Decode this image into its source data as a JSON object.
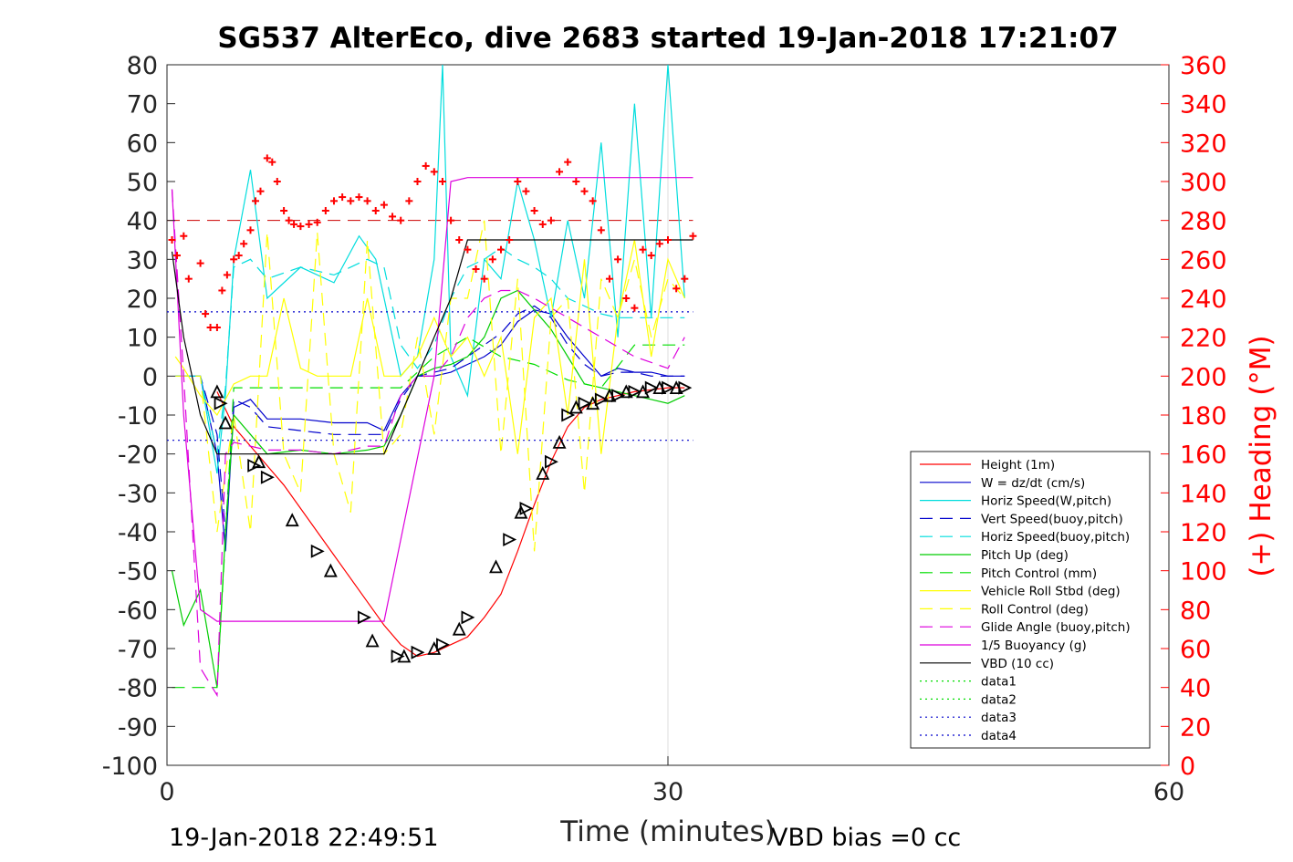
{
  "chart_data": {
    "type": "line",
    "title": "SG537 AlterEco, dive 2683 started 19-Jan-2018 17:21:07",
    "xlabel": "Time (minutes)",
    "ylabel": "",
    "y2label": "(+) Heading (°M)",
    "xlim": [
      0,
      60
    ],
    "ylim": [
      -100,
      80
    ],
    "y2lim": [
      0,
      360
    ],
    "xticks": [
      "0",
      "30",
      "60"
    ],
    "yticks": [
      "80",
      "70",
      "60",
      "50",
      "40",
      "30",
      "20",
      "10",
      "0",
      "-10",
      "-20",
      "-30",
      "-40",
      "-50",
      "-60",
      "-70",
      "-80",
      "-90",
      "-100"
    ],
    "y2ticks": [
      "360",
      "340",
      "320",
      "300",
      "280",
      "260",
      "240",
      "220",
      "200",
      "180",
      "160",
      "140",
      "120",
      "100",
      "80",
      "60",
      "40",
      "20",
      "0"
    ],
    "grid": "x-only",
    "legend_position": "bottom-right",
    "footer_left": "19-Jan-2018 22:49:51",
    "footer_right": "VBD bias =0 cc",
    "series": [
      {
        "name": "Height (1m)",
        "color": "#ff0000",
        "style": "solid",
        "x": [
          3.0,
          4.0,
          5.0,
          6.0,
          7.0,
          8.0,
          9.0,
          10.0,
          11.0,
          12.0,
          13.0,
          14.0,
          15.0,
          16.0,
          17.0,
          18.0,
          19.0,
          20.0,
          21.0,
          22.0,
          23.0,
          24.0,
          25.0,
          26.0,
          27.0,
          28.0,
          29.0,
          30.0,
          31.0
        ],
        "y": [
          -4,
          -13,
          -18,
          -23,
          -28,
          -34,
          -40,
          -46,
          -52,
          -58,
          -64,
          -69,
          -72,
          -71,
          -69,
          -67,
          -62,
          -56,
          -45,
          -33,
          -22,
          -13,
          -8,
          -6,
          -5,
          -4,
          -3.5,
          -3,
          -3
        ]
      },
      {
        "name": "W = dz/dt (cm/s)",
        "color": "#0000cc",
        "style": "solid",
        "x": [
          0.5,
          2.0,
          3.0,
          3.5,
          4.0,
          5.0,
          6.0,
          8.0,
          10.0,
          12.0,
          13.0,
          14.0,
          15.0,
          16.0,
          17.0,
          18.0,
          19.0,
          20.0,
          21.0,
          22.0,
          23.0,
          24.0,
          25.0,
          26.0,
          27.0,
          28.0,
          29.0,
          30.0,
          31.0
        ],
        "y": [
          0,
          0,
          -20,
          -45,
          -8,
          -6,
          -11,
          -11,
          -12,
          -12,
          -14,
          -5,
          0,
          0,
          1,
          3,
          5,
          8,
          14,
          17,
          16,
          10,
          5,
          0,
          2,
          1,
          1,
          0,
          0
        ]
      },
      {
        "name": "Horiz Speed(W,pitch)",
        "color": "#00dddd",
        "style": "solid",
        "x": [
          0.5,
          2.0,
          3.0,
          3.5,
          4.0,
          5.0,
          6.0,
          8.0,
          10.0,
          11.5,
          12.5,
          13.5,
          14.0,
          15.0,
          16.0,
          16.5,
          17.0,
          18.0,
          19.0,
          20.0,
          21.0,
          22.0,
          23.0,
          24.0,
          25.0,
          26.0,
          27.0,
          28.0,
          29.0,
          30.0,
          31.0
        ],
        "y": [
          0,
          0,
          -25,
          -5,
          30,
          53,
          20,
          28,
          24,
          36,
          30,
          10,
          0,
          5,
          30,
          80,
          5,
          -5,
          30,
          25,
          50,
          35,
          15,
          40,
          20,
          60,
          10,
          70,
          15,
          80,
          20
        ]
      },
      {
        "name": "Vert Speed(buoy,pitch)",
        "color": "#0000cc",
        "style": "dashed",
        "x": [
          0.5,
          2.0,
          3.0,
          3.5,
          4.0,
          5.0,
          6.0,
          8.0,
          10.0,
          12.0,
          13.0,
          14.0,
          15.0,
          16.0,
          17.0,
          18.0,
          19.0,
          20.0,
          21.0,
          22.0,
          23.0,
          24.0,
          25.0,
          26.0,
          27.0,
          28.0,
          29.0,
          30.0,
          31.0
        ],
        "y": [
          0,
          0,
          -15,
          -40,
          -6,
          -8,
          -13,
          -14,
          -15,
          -15,
          -15,
          -6,
          0,
          1,
          2,
          5,
          8,
          11,
          16,
          18,
          15,
          8,
          3,
          0,
          1,
          1,
          0,
          0,
          0
        ]
      },
      {
        "name": "Horiz Speed(buoy,pitch)",
        "color": "#00dddd",
        "style": "dashed",
        "x": [
          0.5,
          2.0,
          3.0,
          3.5,
          4.0,
          5.0,
          6.0,
          8.0,
          10.0,
          12.0,
          13.0,
          14.0,
          15.0,
          16.0,
          17.0,
          18.0,
          19.0,
          20.0,
          21.0,
          22.0,
          23.0,
          24.0,
          25.0,
          26.0,
          27.0,
          28.0,
          29.0,
          30.0,
          31.0
        ],
        "y": [
          0,
          0,
          -20,
          -3,
          28,
          30,
          25,
          28,
          26,
          30,
          28,
          8,
          2,
          8,
          20,
          28,
          30,
          33,
          30,
          28,
          25,
          20,
          18,
          16,
          15,
          15,
          15,
          15,
          15
        ]
      },
      {
        "name": "Pitch Up (deg)",
        "color": "#00cc00",
        "style": "solid",
        "x": [
          0.3,
          1.0,
          2.0,
          3.0,
          3.5,
          4.0,
          5.0,
          6.0,
          8.0,
          10.0,
          12.0,
          13.0,
          14.0,
          15.0,
          16.0,
          17.0,
          18.0,
          19.0,
          20.0,
          21.0,
          22.0,
          23.0,
          24.0,
          25.0,
          26.0,
          27.0,
          28.0,
          29.0,
          30.0,
          31.0
        ],
        "y": [
          -50,
          -64,
          -55,
          -80,
          -40,
          -10,
          -15,
          -20,
          -19,
          -20,
          -19,
          -18,
          -10,
          0,
          2,
          3,
          5,
          10,
          20,
          22,
          17,
          12,
          5,
          -2,
          -3,
          -4,
          -5,
          -6,
          -7,
          -5
        ]
      },
      {
        "name": "Pitch Control (mm)",
        "color": "#00dd00",
        "style": "dashed",
        "x": [
          0.3,
          2.0,
          3.0,
          4.0,
          6.0,
          8.0,
          10.0,
          12.0,
          14.0,
          16.0,
          18.0,
          20.0,
          22.0,
          24.0,
          26.0,
          28.0,
          30.0,
          31.0
        ],
        "y": [
          -80,
          -80,
          -80,
          -3,
          -3,
          -3,
          -3,
          -3,
          -3,
          5,
          10,
          5,
          3,
          -1,
          -3,
          8,
          8,
          8
        ]
      },
      {
        "name": "Vehicle Roll Stbd (deg)",
        "color": "#ffff00",
        "style": "solid",
        "x": [
          0.5,
          1.0,
          2.0,
          3.0,
          4.0,
          5.0,
          6.0,
          7.0,
          8.0,
          9.0,
          10.0,
          11.0,
          12.0,
          13.0,
          14.0,
          15.0,
          16.0,
          17.0,
          18.0,
          19.0,
          20.0,
          21.0,
          22.0,
          23.0,
          24.0,
          25.0,
          26.0,
          27.0,
          28.0,
          29.0,
          30.0,
          31.0
        ],
        "y": [
          5,
          2,
          -5,
          -10,
          -2,
          0,
          0,
          20,
          2,
          0,
          0,
          0,
          20,
          0,
          0,
          5,
          15,
          5,
          10,
          0,
          10,
          -20,
          15,
          20,
          -10,
          30,
          -20,
          15,
          35,
          5,
          30,
          20
        ]
      },
      {
        "name": "Roll Control (deg)",
        "color": "#ffff00",
        "style": "dashed",
        "x": [
          0.5,
          2.0,
          3.0,
          4.0,
          5.0,
          6.0,
          7.0,
          8.0,
          9.0,
          10.0,
          11.0,
          12.0,
          13.0,
          14.0,
          15.0,
          16.0,
          17.0,
          18.0,
          19.0,
          20.0,
          21.0,
          22.0,
          23.0,
          24.0,
          25.0,
          26.0,
          27.0,
          28.0,
          29.0,
          30.0,
          31.0
        ],
        "y": [
          0,
          0,
          -40,
          -10,
          -40,
          37,
          -20,
          -30,
          37,
          -20,
          -35,
          35,
          -20,
          -15,
          10,
          -15,
          20,
          20,
          40,
          -20,
          25,
          -45,
          15,
          20,
          -30,
          25,
          15,
          30,
          10,
          25,
          20
        ]
      },
      {
        "name": "Glide Angle (buoy,pitch)",
        "color": "#dd00dd",
        "style": "dashed",
        "x": [
          0.3,
          1.0,
          2.0,
          3.0,
          3.5,
          4.0,
          6.0,
          8.0,
          10.0,
          12.0,
          13.0,
          14.0,
          15.0,
          16.0,
          17.0,
          18.0,
          19.0,
          20.0,
          21.0,
          22.0,
          24.0,
          26.0,
          28.0,
          30.0,
          31.0
        ],
        "y": [
          48,
          0,
          -75,
          -82,
          -20,
          -17,
          -19,
          -19,
          -20,
          -18,
          -18,
          -5,
          0,
          0,
          5,
          15,
          20,
          22,
          22,
          20,
          15,
          10,
          5,
          2,
          10
        ]
      },
      {
        "name": "1/5 Buoyancy (g)",
        "color": "#dd00dd",
        "style": "solid",
        "x": [
          0.3,
          1.0,
          2.0,
          3.0,
          4.0,
          6.0,
          8.0,
          10.0,
          12.0,
          13.0,
          16.0,
          17.0,
          18.0,
          20.0,
          22.0,
          24.0,
          26.0,
          28.0,
          30.0,
          31.5
        ],
        "y": [
          48,
          -10,
          -60,
          -63,
          -63,
          -63,
          -63,
          -63,
          -63,
          -63,
          0,
          50,
          51,
          51,
          51,
          51,
          51,
          51,
          51,
          51
        ]
      },
      {
        "name": "VBD (10 cc)",
        "color": "#000000",
        "style": "solid",
        "x": [
          0.3,
          1.0,
          2.0,
          3.0,
          4.0,
          6.0,
          8.0,
          10.0,
          12.0,
          13.0,
          14.0,
          15.0,
          16.0,
          17.0,
          18.0,
          20.0,
          22.0,
          24.0,
          26.0,
          28.0,
          30.0,
          31.5
        ],
        "y": [
          32,
          10,
          -10,
          -20,
          -20,
          -20,
          -20,
          -20,
          -20,
          -20,
          -10,
          0,
          10,
          20,
          35,
          35,
          35,
          35,
          35,
          35,
          35,
          35
        ]
      },
      {
        "name": "data1",
        "color": "#00dd00",
        "style": "dotted",
        "x": [],
        "y": []
      },
      {
        "name": "data2",
        "color": "#00dd00",
        "style": "dotted",
        "x": [],
        "y": []
      },
      {
        "name": "data3",
        "color": "#0000cc",
        "style": "dotted",
        "x": [
          0,
          31.5
        ],
        "y": [
          16.5,
          16.5
        ]
      },
      {
        "name": "data4",
        "color": "#0000cc",
        "style": "dotted",
        "x": [
          0,
          31.5
        ],
        "y": [
          -16.5,
          -16.5
        ]
      }
    ],
    "heading_target": {
      "color": "#cc0000",
      "style": "dashed",
      "value": 280
    },
    "heading_points": {
      "color": "#ff0000",
      "marker": "+",
      "x": [
        0.3,
        0.6,
        1.0,
        1.3,
        2.0,
        2.3,
        2.6,
        3.0,
        3.3,
        3.6,
        4.0,
        4.3,
        4.6,
        5.0,
        5.3,
        5.6,
        6.0,
        6.3,
        6.6,
        7.0,
        7.3,
        7.6,
        8.0,
        8.5,
        9.0,
        9.5,
        10.0,
        10.5,
        11.0,
        11.5,
        12.0,
        12.5,
        13.0,
        13.5,
        14.0,
        14.5,
        15.0,
        15.5,
        16.0,
        16.5,
        17.0,
        17.5,
        18.0,
        18.5,
        19.0,
        19.5,
        20.0,
        20.5,
        21.0,
        21.5,
        22.0,
        22.5,
        23.0,
        23.5,
        24.0,
        24.5,
        25.0,
        25.5,
        26.0,
        26.5,
        27.0,
        27.5,
        28.0,
        28.5,
        29.0,
        29.5,
        30.0,
        30.5,
        31.0,
        31.5
      ],
      "y": [
        270,
        262,
        272,
        250,
        258,
        232,
        225,
        225,
        244,
        252,
        260,
        262,
        268,
        275,
        290,
        295,
        312,
        310,
        300,
        285,
        280,
        278,
        277,
        278,
        279,
        285,
        290,
        292,
        290,
        292,
        290,
        285,
        288,
        282,
        280,
        290,
        300,
        308,
        305,
        300,
        280,
        270,
        265,
        255,
        250,
        260,
        265,
        270,
        300,
        295,
        285,
        278,
        280,
        305,
        310,
        300,
        295,
        290,
        275,
        250,
        260,
        240,
        235,
        265,
        262,
        268,
        270,
        245,
        250,
        272
      ]
    },
    "markers": {
      "type": "triangles",
      "color": "#000000",
      "x": [
        3.0,
        3.2,
        3.5,
        5.2,
        5.5,
        6.0,
        7.5,
        9.0,
        9.8,
        11.8,
        12.3,
        13.8,
        14.2,
        15.0,
        16.0,
        16.5,
        17.5,
        18.0,
        19.7,
        20.5,
        21.2,
        21.5,
        22.5,
        23.0,
        23.5,
        24.0,
        24.5,
        25.0,
        25.5,
        26.0,
        26.5,
        27.0,
        27.5,
        28.0,
        28.5,
        29.0,
        29.5,
        30.0,
        30.5,
        31.0
      ],
      "y": [
        -4,
        -7,
        -12,
        -23,
        -22,
        -26,
        -37,
        -45,
        -50,
        -62,
        -68,
        -72,
        -72,
        -71,
        -70,
        -69,
        -65,
        -62,
        -49,
        -42,
        -35,
        -34,
        -25,
        -22,
        -17,
        -10,
        -8,
        -7,
        -7,
        -6,
        -5,
        -5,
        -4,
        -4,
        -4,
        -3,
        -3,
        -3,
        -3,
        -3
      ]
    }
  }
}
